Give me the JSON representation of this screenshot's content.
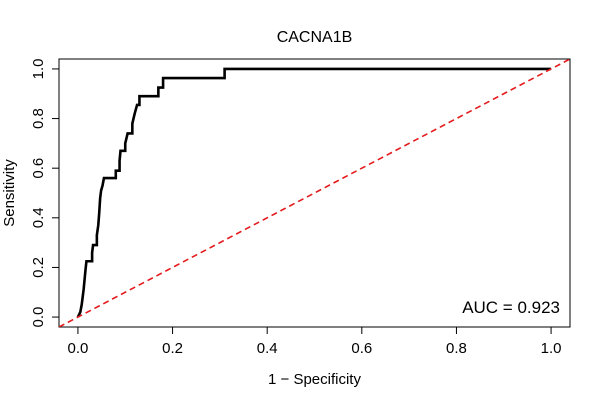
{
  "chart_data": {
    "type": "line",
    "title": "CACNA1B",
    "xlabel": "1 − Specificity",
    "ylabel": "Sensitivity",
    "xlim": [
      -0.04,
      1.04
    ],
    "ylim": [
      -0.04,
      1.04
    ],
    "x_ticks": [
      0.0,
      0.2,
      0.4,
      0.6,
      0.8,
      1.0
    ],
    "x_tick_labels": [
      "0.0",
      "0.2",
      "0.4",
      "0.6",
      "0.8",
      "1.0"
    ],
    "y_ticks": [
      0.0,
      0.2,
      0.4,
      0.6,
      0.8,
      1.0
    ],
    "y_tick_labels": [
      "0.0",
      "0.2",
      "0.4",
      "0.6",
      "0.8",
      "1.0"
    ],
    "grid": false,
    "annotation": "AUC = 0.923",
    "series": [
      {
        "color": "#000000",
        "style": "solid",
        "step": true,
        "points": [
          [
            0.0,
            0.0
          ],
          [
            0.005,
            0.02
          ],
          [
            0.008,
            0.05
          ],
          [
            0.01,
            0.08
          ],
          [
            0.012,
            0.11
          ],
          [
            0.014,
            0.15
          ],
          [
            0.016,
            0.19
          ],
          [
            0.018,
            0.225
          ],
          [
            0.03,
            0.225
          ],
          [
            0.03,
            0.26
          ],
          [
            0.032,
            0.29
          ],
          [
            0.04,
            0.29
          ],
          [
            0.04,
            0.33
          ],
          [
            0.043,
            0.37
          ],
          [
            0.045,
            0.42
          ],
          [
            0.047,
            0.48
          ],
          [
            0.049,
            0.51
          ],
          [
            0.052,
            0.53
          ],
          [
            0.055,
            0.56
          ],
          [
            0.08,
            0.56
          ],
          [
            0.08,
            0.59
          ],
          [
            0.088,
            0.59
          ],
          [
            0.088,
            0.63
          ],
          [
            0.09,
            0.67
          ],
          [
            0.1,
            0.67
          ],
          [
            0.1,
            0.7
          ],
          [
            0.105,
            0.74
          ],
          [
            0.115,
            0.74
          ],
          [
            0.115,
            0.78
          ],
          [
            0.12,
            0.82
          ],
          [
            0.125,
            0.855
          ],
          [
            0.13,
            0.855
          ],
          [
            0.13,
            0.89
          ],
          [
            0.17,
            0.89
          ],
          [
            0.17,
            0.925
          ],
          [
            0.18,
            0.925
          ],
          [
            0.18,
            0.963
          ],
          [
            0.31,
            0.963
          ],
          [
            0.31,
            1.0
          ],
          [
            1.0,
            1.0
          ]
        ]
      },
      {
        "color": "#e41a1c",
        "style": "dashed",
        "points": [
          [
            -0.04,
            -0.04
          ],
          [
            1.04,
            1.04
          ]
        ]
      }
    ]
  }
}
